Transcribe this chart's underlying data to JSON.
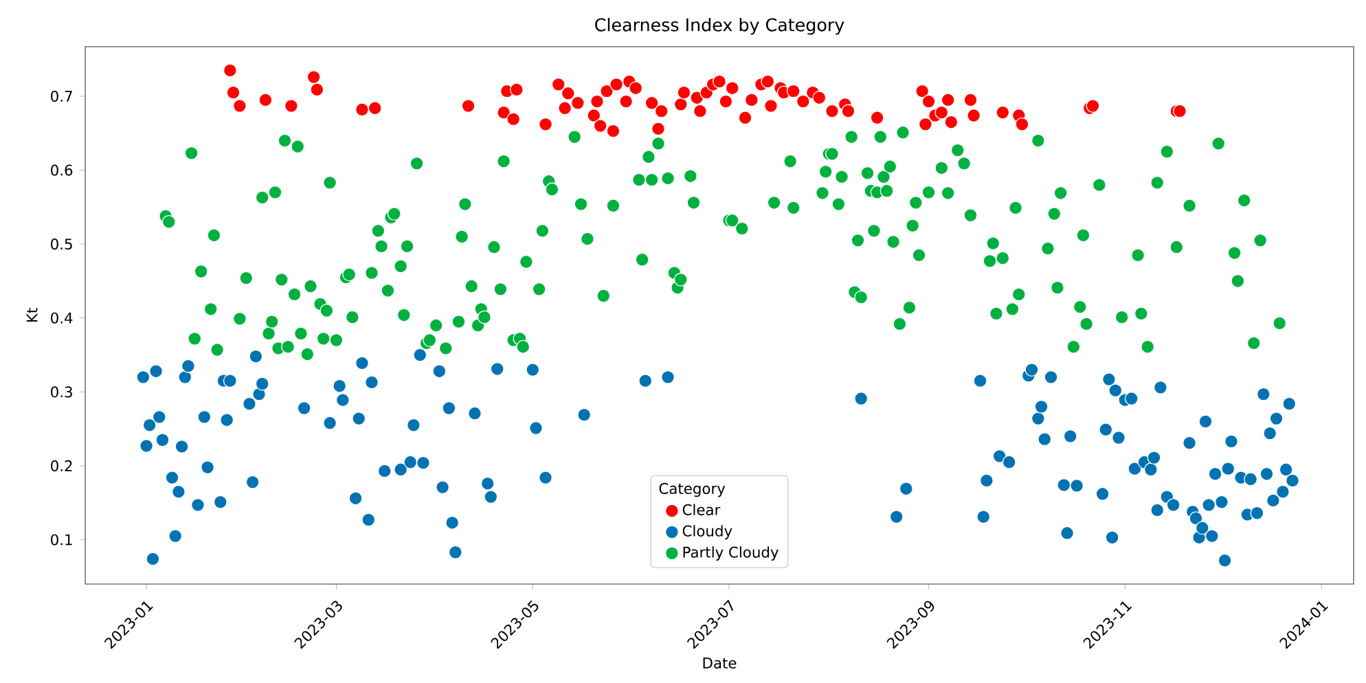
{
  "chart_data": {
    "type": "scatter",
    "title": "Clearness Index by Category",
    "xlabel": "Date",
    "ylabel": "Kt",
    "legend_title": "Category",
    "legend": "bottom",
    "marker": "circle",
    "xlim": [
      "2022-12-13",
      "2024-01-11"
    ],
    "ylim": [
      0.04,
      0.767
    ],
    "xticks": [
      "2023-01",
      "2023-03",
      "2023-05",
      "2023-07",
      "2023-09",
      "2023-11",
      "2024-01"
    ],
    "yticks": [
      0.1,
      0.2,
      0.3,
      0.4,
      0.5,
      0.6,
      0.7
    ],
    "series": [
      {
        "name": "Clear",
        "color": "#ff0000",
        "x": [
          "2023-01-27",
          "2023-01-28",
          "2023-01-30",
          "2023-02-07",
          "2023-02-15",
          "2023-02-22",
          "2023-02-23",
          "2023-03-09",
          "2023-03-13",
          "2023-04-11",
          "2023-04-22",
          "2023-04-23",
          "2023-04-25",
          "2023-04-26",
          "2023-05-05",
          "2023-05-09",
          "2023-05-11",
          "2023-05-12",
          "2023-05-15",
          "2023-05-20",
          "2023-05-21",
          "2023-05-22",
          "2023-05-24",
          "2023-05-26",
          "2023-05-27",
          "2023-05-30",
          "2023-05-31",
          "2023-06-02",
          "2023-06-07",
          "2023-06-09",
          "2023-06-10",
          "2023-06-16",
          "2023-06-17",
          "2023-06-21",
          "2023-06-22",
          "2023-06-24",
          "2023-06-26",
          "2023-06-28",
          "2023-06-30",
          "2023-07-02",
          "2023-07-06",
          "2023-07-08",
          "2023-07-11",
          "2023-07-13",
          "2023-07-14",
          "2023-07-17",
          "2023-07-18",
          "2023-07-21",
          "2023-07-24",
          "2023-07-27",
          "2023-07-29",
          "2023-08-02",
          "2023-08-06",
          "2023-08-07",
          "2023-08-16",
          "2023-08-30",
          "2023-08-31",
          "2023-09-01",
          "2023-09-03",
          "2023-09-05",
          "2023-09-07",
          "2023-09-08",
          "2023-09-14",
          "2023-09-15",
          "2023-09-24",
          "2023-09-29",
          "2023-09-30",
          "2023-10-21",
          "2023-10-22",
          "2023-11-17",
          "2023-11-18"
        ],
        "values": [
          0.735,
          0.705,
          0.687,
          0.695,
          0.687,
          0.726,
          0.709,
          0.682,
          0.684,
          0.687,
          0.678,
          0.707,
          0.669,
          0.709,
          0.662,
          0.716,
          0.684,
          0.704,
          0.691,
          0.674,
          0.693,
          0.66,
          0.707,
          0.653,
          0.716,
          0.693,
          0.72,
          0.711,
          0.691,
          0.656,
          0.68,
          0.689,
          0.705,
          0.698,
          0.68,
          0.705,
          0.716,
          0.72,
          0.693,
          0.711,
          0.671,
          0.695,
          0.716,
          0.72,
          0.687,
          0.711,
          0.705,
          0.707,
          0.693,
          0.705,
          0.698,
          0.68,
          0.689,
          0.68,
          0.671,
          0.707,
          0.662,
          0.693,
          0.674,
          0.678,
          0.695,
          0.665,
          0.695,
          0.674,
          0.678,
          0.674,
          0.662,
          0.684,
          0.687,
          0.68,
          0.68
        ]
      },
      {
        "name": "Cloudy",
        "color": "#0173b2",
        "x": [
          "2022-12-31",
          "2023-01-01",
          "2023-01-02",
          "2023-01-03",
          "2023-01-04",
          "2023-01-05",
          "2023-01-06",
          "2023-01-09",
          "2023-01-10",
          "2023-01-11",
          "2023-01-12",
          "2023-01-13",
          "2023-01-14",
          "2023-01-17",
          "2023-01-19",
          "2023-01-20",
          "2023-01-24",
          "2023-01-25",
          "2023-01-26",
          "2023-01-27",
          "2023-02-02",
          "2023-02-03",
          "2023-02-04",
          "2023-02-05",
          "2023-02-06",
          "2023-02-19",
          "2023-02-27",
          "2023-03-02",
          "2023-03-03",
          "2023-03-07",
          "2023-03-08",
          "2023-03-09",
          "2023-03-11",
          "2023-03-12",
          "2023-03-16",
          "2023-03-21",
          "2023-03-24",
          "2023-03-25",
          "2023-03-27",
          "2023-03-28",
          "2023-04-02",
          "2023-04-03",
          "2023-04-05",
          "2023-04-06",
          "2023-04-07",
          "2023-04-13",
          "2023-04-17",
          "2023-04-18",
          "2023-04-20",
          "2023-05-01",
          "2023-05-02",
          "2023-05-05",
          "2023-05-17",
          "2023-06-05",
          "2023-06-12",
          "2023-08-11",
          "2023-08-22",
          "2023-08-25",
          "2023-09-17",
          "2023-09-18",
          "2023-09-19",
          "2023-09-23",
          "2023-09-26",
          "2023-10-02",
          "2023-10-03",
          "2023-10-05",
          "2023-10-06",
          "2023-10-07",
          "2023-10-09",
          "2023-10-13",
          "2023-10-14",
          "2023-10-15",
          "2023-10-17",
          "2023-10-25",
          "2023-10-26",
          "2023-10-27",
          "2023-10-28",
          "2023-10-29",
          "2023-10-30",
          "2023-11-01",
          "2023-11-03",
          "2023-11-04",
          "2023-11-07",
          "2023-11-09",
          "2023-11-10",
          "2023-11-11",
          "2023-11-12",
          "2023-11-14",
          "2023-11-16",
          "2023-11-21",
          "2023-11-22",
          "2023-11-23",
          "2023-11-24",
          "2023-11-25",
          "2023-11-26",
          "2023-11-27",
          "2023-11-28",
          "2023-11-29",
          "2023-12-01",
          "2023-12-02",
          "2023-12-03",
          "2023-12-04",
          "2023-12-07",
          "2023-12-09",
          "2023-12-10",
          "2023-12-12",
          "2023-12-14",
          "2023-12-15",
          "2023-12-16",
          "2023-12-17",
          "2023-12-18",
          "2023-12-20",
          "2023-12-21",
          "2023-12-22",
          "2023-12-23"
        ],
        "values": [
          0.32,
          0.227,
          0.255,
          0.074,
          0.328,
          0.266,
          0.235,
          0.184,
          0.105,
          0.165,
          0.226,
          0.32,
          0.335,
          0.147,
          0.266,
          0.198,
          0.151,
          0.315,
          0.262,
          0.315,
          0.284,
          0.178,
          0.348,
          0.297,
          0.311,
          0.278,
          0.258,
          0.308,
          0.289,
          0.156,
          0.264,
          0.339,
          0.127,
          0.313,
          0.193,
          0.195,
          0.205,
          0.255,
          0.35,
          0.204,
          0.328,
          0.171,
          0.278,
          0.123,
          0.083,
          0.271,
          0.176,
          0.158,
          0.331,
          0.33,
          0.251,
          0.184,
          0.269,
          0.315,
          0.32,
          0.291,
          0.131,
          0.169,
          0.315,
          0.131,
          0.18,
          0.213,
          0.205,
          0.322,
          0.33,
          0.264,
          0.28,
          0.236,
          0.32,
          0.174,
          0.109,
          0.24,
          0.173,
          0.162,
          0.249,
          0.317,
          0.103,
          0.302,
          0.238,
          0.289,
          0.291,
          0.196,
          0.205,
          0.195,
          0.211,
          0.14,
          0.306,
          0.158,
          0.147,
          0.231,
          0.138,
          0.129,
          0.103,
          0.116,
          0.26,
          0.147,
          0.105,
          0.189,
          0.151,
          0.072,
          0.196,
          0.233,
          0.184,
          0.134,
          0.182,
          0.136,
          0.297,
          0.189,
          0.244,
          0.153,
          0.264,
          0.165,
          0.195,
          0.284,
          0.18
        ]
      },
      {
        "name": "Partly Cloudy",
        "color": "#00b140",
        "x": [
          "2023-01-07",
          "2023-01-08",
          "2023-01-15",
          "2023-01-16",
          "2023-01-18",
          "2023-01-21",
          "2023-01-22",
          "2023-01-23",
          "2023-01-30",
          "2023-02-01",
          "2023-02-06",
          "2023-02-08",
          "2023-02-09",
          "2023-02-10",
          "2023-02-11",
          "2023-02-12",
          "2023-02-13",
          "2023-02-14",
          "2023-02-16",
          "2023-02-17",
          "2023-02-18",
          "2023-02-20",
          "2023-02-21",
          "2023-02-24",
          "2023-02-25",
          "2023-02-26",
          "2023-02-27",
          "2023-03-01",
          "2023-03-04",
          "2023-03-05",
          "2023-03-06",
          "2023-03-12",
          "2023-03-14",
          "2023-03-15",
          "2023-03-17",
          "2023-03-18",
          "2023-03-19",
          "2023-03-21",
          "2023-03-22",
          "2023-03-23",
          "2023-03-26",
          "2023-03-29",
          "2023-03-30",
          "2023-04-01",
          "2023-04-04",
          "2023-04-08",
          "2023-04-09",
          "2023-04-10",
          "2023-04-12",
          "2023-04-14",
          "2023-04-15",
          "2023-04-16",
          "2023-04-19",
          "2023-04-21",
          "2023-04-22",
          "2023-04-25",
          "2023-04-27",
          "2023-04-28",
          "2023-04-29",
          "2023-05-03",
          "2023-05-04",
          "2023-05-06",
          "2023-05-07",
          "2023-05-14",
          "2023-05-16",
          "2023-05-18",
          "2023-05-23",
          "2023-05-26",
          "2023-06-03",
          "2023-06-04",
          "2023-06-06",
          "2023-06-07",
          "2023-06-09",
          "2023-06-12",
          "2023-06-14",
          "2023-06-15",
          "2023-06-16",
          "2023-06-19",
          "2023-06-20",
          "2023-07-01",
          "2023-07-02",
          "2023-07-05",
          "2023-07-15",
          "2023-07-20",
          "2023-07-21",
          "2023-07-30",
          "2023-07-31",
          "2023-08-01",
          "2023-08-02",
          "2023-08-04",
          "2023-08-05",
          "2023-08-08",
          "2023-08-09",
          "2023-08-10",
          "2023-08-11",
          "2023-08-13",
          "2023-08-14",
          "2023-08-15",
          "2023-08-16",
          "2023-08-17",
          "2023-08-18",
          "2023-08-19",
          "2023-08-20",
          "2023-08-21",
          "2023-08-23",
          "2023-08-24",
          "2023-08-26",
          "2023-08-27",
          "2023-08-28",
          "2023-08-29",
          "2023-09-01",
          "2023-09-05",
          "2023-09-07",
          "2023-09-10",
          "2023-09-12",
          "2023-09-14",
          "2023-09-20",
          "2023-09-21",
          "2023-09-22",
          "2023-09-24",
          "2023-09-27",
          "2023-09-28",
          "2023-09-29",
          "2023-10-05",
          "2023-10-08",
          "2023-10-10",
          "2023-10-11",
          "2023-10-12",
          "2023-10-16",
          "2023-10-18",
          "2023-10-19",
          "2023-10-20",
          "2023-10-24",
          "2023-10-31",
          "2023-11-05",
          "2023-11-06",
          "2023-11-08",
          "2023-11-11",
          "2023-11-14",
          "2023-11-17",
          "2023-11-21",
          "2023-11-30",
          "2023-12-05",
          "2023-12-06",
          "2023-12-08",
          "2023-12-11",
          "2023-12-13",
          "2023-12-19"
        ],
        "values": [
          0.538,
          0.53,
          0.623,
          0.372,
          0.463,
          0.412,
          0.512,
          0.357,
          0.399,
          0.454,
          0.563,
          0.379,
          0.395,
          0.57,
          0.359,
          0.452,
          0.64,
          0.361,
          0.432,
          0.632,
          0.379,
          0.351,
          0.443,
          0.419,
          0.372,
          0.41,
          0.583,
          0.37,
          0.455,
          0.459,
          0.401,
          0.461,
          0.518,
          0.497,
          0.437,
          0.536,
          0.541,
          0.47,
          0.404,
          0.497,
          0.609,
          0.366,
          0.37,
          0.39,
          0.359,
          0.395,
          0.51,
          0.554,
          0.443,
          0.39,
          0.412,
          0.401,
          0.496,
          0.439,
          0.612,
          0.37,
          0.372,
          0.361,
          0.476,
          0.439,
          0.518,
          0.585,
          0.574,
          0.645,
          0.554,
          0.507,
          0.43,
          0.552,
          0.587,
          0.479,
          0.618,
          0.587,
          0.636,
          0.589,
          0.461,
          0.441,
          0.452,
          0.592,
          0.556,
          0.532,
          0.532,
          0.521,
          0.556,
          0.612,
          0.549,
          0.569,
          0.598,
          0.622,
          0.622,
          0.554,
          0.591,
          0.645,
          0.435,
          0.505,
          0.428,
          0.596,
          0.572,
          0.518,
          0.57,
          0.645,
          0.591,
          0.572,
          0.605,
          0.503,
          0.392,
          0.651,
          0.414,
          0.525,
          0.556,
          0.485,
          0.57,
          0.603,
          0.569,
          0.627,
          0.609,
          0.539,
          0.477,
          0.501,
          0.406,
          0.481,
          0.412,
          0.549,
          0.432,
          0.64,
          0.494,
          0.541,
          0.441,
          0.569,
          0.361,
          0.415,
          0.512,
          0.392,
          0.58,
          0.401,
          0.485,
          0.406,
          0.361,
          0.583,
          0.625,
          0.496,
          0.552,
          0.636,
          0.488,
          0.45,
          0.559,
          0.366,
          0.505,
          0.393
        ]
      }
    ]
  }
}
